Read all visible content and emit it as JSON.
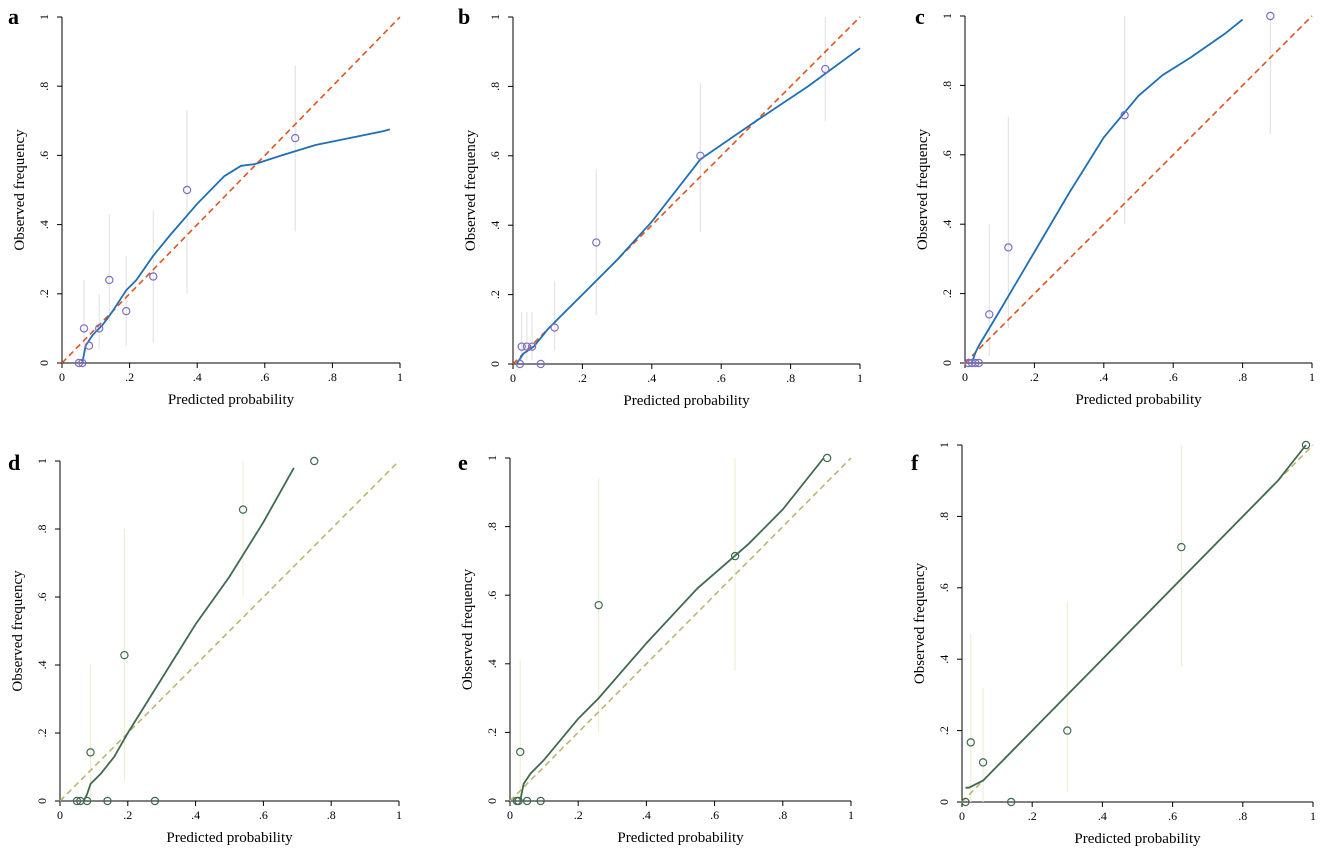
{
  "chart_data": [
    {
      "type": "scatter",
      "label": "a",
      "xlabel": "Predicted probability",
      "ylabel": "Observed frequency",
      "xlim": [
        0,
        1
      ],
      "ylim": [
        0,
        1
      ],
      "xticks": [
        0,
        {
          "value": 0.2,
          "label": ".2"
        },
        {
          "value": 0.4,
          "label": ".4"
        },
        {
          "value": 0.6,
          "label": ".6"
        },
        {
          "value": 0.8,
          "label": ".8"
        },
        1
      ],
      "yticks": [
        0,
        {
          "value": 0.2,
          "label": ".2"
        },
        {
          "value": 0.4,
          "label": ".4"
        },
        {
          "value": 0.6,
          "label": ".6"
        },
        {
          "value": 0.8,
          "label": ".8"
        },
        1
      ],
      "point_color": "#7b6fc4",
      "line_color": "#1f6fb5",
      "ref_color": "#e0531f",
      "ci_color": "#e4e4e4",
      "x": [
        0.05,
        0.06,
        0.065,
        0.08,
        0.11,
        0.14,
        0.19,
        0.27,
        0.37,
        0.69
      ],
      "y": [
        0,
        0,
        0.1,
        0.05,
        0.1,
        0.24,
        0.15,
        0.25,
        0.5,
        0.65
      ],
      "ci_low": [
        null,
        null,
        0.02,
        null,
        0.04,
        0.12,
        0.05,
        0.06,
        0.2,
        0.38
      ],
      "ci_high": [
        null,
        null,
        0.24,
        null,
        0.2,
        0.43,
        0.31,
        0.44,
        0.73,
        0.86
      ],
      "smooth_x": [
        0.06,
        0.07,
        0.09,
        0.12,
        0.15,
        0.19,
        0.22,
        0.27,
        0.32,
        0.4,
        0.48,
        0.53,
        0.57,
        0.65,
        0.75,
        0.85,
        0.95,
        0.97
      ],
      "smooth_y": [
        0,
        0.05,
        0.08,
        0.11,
        0.15,
        0.21,
        0.24,
        0.31,
        0.37,
        0.46,
        0.54,
        0.57,
        0.575,
        0.6,
        0.63,
        0.65,
        0.67,
        0.675
      ]
    },
    {
      "type": "scatter",
      "label": "b",
      "xlabel": "Predicted probability",
      "ylabel": "Observed frequency",
      "xlim": [
        0,
        1
      ],
      "ylim": [
        0,
        1
      ],
      "xticks": [
        0,
        {
          "value": 0.2,
          "label": ".2"
        },
        {
          "value": 0.4,
          "label": ".4"
        },
        {
          "value": 0.6,
          "label": ".6"
        },
        {
          "value": 0.8,
          "label": ".8"
        },
        1
      ],
      "yticks": [
        0,
        {
          "value": 0.2,
          "label": ".2"
        },
        {
          "value": 0.4,
          "label": ".4"
        },
        {
          "value": 0.6,
          "label": ".6"
        },
        {
          "value": 0.8,
          "label": ".8"
        },
        1
      ],
      "point_color": "#7b6fc4",
      "line_color": "#1f6fb5",
      "ref_color": "#e0531f",
      "ci_color": "#e4e4e4",
      "x": [
        0.02,
        0.025,
        0.04,
        0.055,
        0.08,
        0.12,
        0.24,
        0.54,
        0.9
      ],
      "y": [
        0,
        0.05,
        0.05,
        0.05,
        0,
        0.105,
        0.35,
        0.6,
        0.85
      ],
      "ci_low": [
        null,
        0.01,
        0.01,
        0.01,
        null,
        0.04,
        0.14,
        0.38,
        0.7
      ],
      "ci_high": [
        null,
        0.15,
        0.15,
        0.15,
        null,
        0.24,
        0.56,
        0.81,
        1
      ],
      "smooth_x": [
        0.01,
        0.03,
        0.06,
        0.1,
        0.15,
        0.2,
        0.3,
        0.4,
        0.54,
        0.7,
        0.85,
        1
      ],
      "smooth_y": [
        0,
        0.03,
        0.05,
        0.1,
        0.15,
        0.2,
        0.3,
        0.41,
        0.59,
        0.7,
        0.8,
        0.91
      ]
    },
    {
      "type": "scatter",
      "label": "c",
      "xlabel": "Predicted probability",
      "ylabel": "Observed frequency",
      "xlim": [
        0,
        1
      ],
      "ylim": [
        0,
        1
      ],
      "xticks": [
        0,
        {
          "value": 0.2,
          "label": ".2"
        },
        {
          "value": 0.4,
          "label": ".4"
        },
        {
          "value": 0.6,
          "label": ".6"
        },
        {
          "value": 0.8,
          "label": ".8"
        },
        1
      ],
      "yticks": [
        0,
        {
          "value": 0.2,
          "label": ".2"
        },
        {
          "value": 0.4,
          "label": ".4"
        },
        {
          "value": 0.6,
          "label": ".6"
        },
        {
          "value": 0.8,
          "label": ".8"
        },
        1
      ],
      "point_color": "#7b6fc4",
      "line_color": "#1f6fb5",
      "ref_color": "#e0531f",
      "ci_color": "#e4e4e4",
      "x": [
        0.01,
        0.02,
        0.03,
        0.04,
        0.07,
        0.125,
        0.46,
        0.88
      ],
      "y": [
        0,
        0,
        0,
        0,
        0.14,
        0.333,
        0.714,
        1
      ],
      "ci_low": [
        null,
        null,
        null,
        null,
        0.02,
        0.1,
        0.4,
        0.66
      ],
      "ci_high": [
        null,
        null,
        null,
        null,
        0.4,
        0.71,
        1,
        1
      ],
      "smooth_x": [
        0.02,
        0.03,
        0.04,
        0.1,
        0.2,
        0.3,
        0.4,
        0.5,
        0.57,
        0.65,
        0.75,
        0.8
      ],
      "smooth_y": [
        0,
        0.03,
        0.05,
        0.15,
        0.32,
        0.49,
        0.65,
        0.77,
        0.83,
        0.88,
        0.95,
        0.99
      ]
    },
    {
      "type": "scatter",
      "label": "d",
      "xlabel": "Predicted probability",
      "ylabel": "Observed frequency",
      "xlim": [
        0,
        1
      ],
      "ylim": [
        0,
        1
      ],
      "xticks": [
        0,
        {
          "value": 0.2,
          "label": ".2"
        },
        {
          "value": 0.4,
          "label": ".4"
        },
        {
          "value": 0.6,
          "label": ".6"
        },
        {
          "value": 0.8,
          "label": ".8"
        },
        1
      ],
      "yticks": [
        0,
        {
          "value": 0.2,
          "label": ".2"
        },
        {
          "value": 0.4,
          "label": ".4"
        },
        {
          "value": 0.6,
          "label": ".6"
        },
        {
          "value": 0.8,
          "label": ".8"
        },
        1
      ],
      "point_color": "#3e6b4f",
      "line_color": "#3e6b4f",
      "ref_color": "#bdb66e",
      "ci_color": "#eef0d2",
      "x": [
        0.05,
        0.06,
        0.08,
        0.09,
        0.14,
        0.19,
        0.28,
        0.54,
        0.75
      ],
      "y": [
        0,
        0,
        0,
        0.143,
        0,
        0.429,
        0,
        0.857,
        1
      ],
      "ci_low": [
        null,
        null,
        null,
        0,
        null,
        0.06,
        null,
        0.6,
        null
      ],
      "ci_high": [
        null,
        null,
        null,
        0.4,
        null,
        0.8,
        null,
        1,
        null
      ],
      "smooth_x": [
        0.07,
        0.08,
        0.09,
        0.12,
        0.16,
        0.2,
        0.3,
        0.4,
        0.5,
        0.6,
        0.69
      ],
      "smooth_y": [
        0,
        0.02,
        0.05,
        0.08,
        0.13,
        0.2,
        0.36,
        0.52,
        0.66,
        0.82,
        0.98
      ]
    },
    {
      "type": "scatter",
      "label": "e",
      "xlabel": "Predicted probability",
      "ylabel": "Observed frequency",
      "xlim": [
        0,
        1
      ],
      "ylim": [
        0,
        1
      ],
      "xticks": [
        0,
        {
          "value": 0.2,
          "label": ".2"
        },
        {
          "value": 0.4,
          "label": ".4"
        },
        {
          "value": 0.6,
          "label": ".6"
        },
        {
          "value": 0.8,
          "label": ".8"
        },
        1
      ],
      "yticks": [
        0,
        {
          "value": 0.2,
          "label": ".2"
        },
        {
          "value": 0.4,
          "label": ".4"
        },
        {
          "value": 0.6,
          "label": ".6"
        },
        {
          "value": 0.8,
          "label": ".8"
        },
        1
      ],
      "point_color": "#3e6b4f",
      "line_color": "#3e6b4f",
      "ref_color": "#bdb66e",
      "ci_color": "#eef0d2",
      "x": [
        0.02,
        0.025,
        0.03,
        0.05,
        0.09,
        0.26,
        0.66,
        0.93
      ],
      "y": [
        0,
        0,
        0.143,
        0,
        0,
        0.571,
        0.714,
        1
      ],
      "ci_low": [
        null,
        null,
        0,
        null,
        null,
        0.2,
        0.38,
        null
      ],
      "ci_high": [
        null,
        null,
        0.41,
        null,
        null,
        0.94,
        1,
        null
      ],
      "smooth_x": [
        0.03,
        0.04,
        0.06,
        0.1,
        0.15,
        0.2,
        0.26,
        0.4,
        0.55,
        0.7,
        0.8,
        0.92
      ],
      "smooth_y": [
        0,
        0.05,
        0.08,
        0.12,
        0.18,
        0.24,
        0.3,
        0.46,
        0.62,
        0.75,
        0.85,
        1
      ]
    },
    {
      "type": "scatter",
      "label": "f",
      "xlabel": "Predicted probability",
      "ylabel": "Observed frequency",
      "xlim": [
        0,
        1
      ],
      "ylim": [
        0,
        1
      ],
      "xticks": [
        0,
        {
          "value": 0.2,
          "label": ".2"
        },
        {
          "value": 0.4,
          "label": ".4"
        },
        {
          "value": 0.6,
          "label": ".6"
        },
        {
          "value": 0.8,
          "label": ".8"
        },
        1
      ],
      "yticks": [
        0,
        {
          "value": 0.2,
          "label": ".2"
        },
        {
          "value": 0.4,
          "label": ".4"
        },
        {
          "value": 0.6,
          "label": ".6"
        },
        {
          "value": 0.8,
          "label": ".8"
        },
        1
      ],
      "point_color": "#3e6b4f",
      "line_color": "#3e6b4f",
      "ref_color": "#bdb66e",
      "ci_color": "#eef0d2",
      "x": [
        0.01,
        0.025,
        0.06,
        0.14,
        0.3,
        0.625,
        0.98
      ],
      "y": [
        0,
        0.167,
        0.111,
        0,
        0.2,
        0.714,
        1
      ],
      "ci_low": [
        null,
        0,
        0,
        null,
        0.03,
        0.38,
        null
      ],
      "ci_high": [
        null,
        0.47,
        0.32,
        null,
        0.56,
        1,
        null
      ],
      "smooth_x": [
        0.01,
        0.02,
        0.04,
        0.06,
        0.1,
        0.2,
        0.3,
        0.4,
        0.5,
        0.6,
        0.7,
        0.8,
        0.9,
        0.98
      ],
      "smooth_y": [
        0.04,
        0.04,
        0.05,
        0.06,
        0.1,
        0.2,
        0.3,
        0.4,
        0.5,
        0.6,
        0.7,
        0.8,
        0.9,
        1
      ]
    }
  ]
}
